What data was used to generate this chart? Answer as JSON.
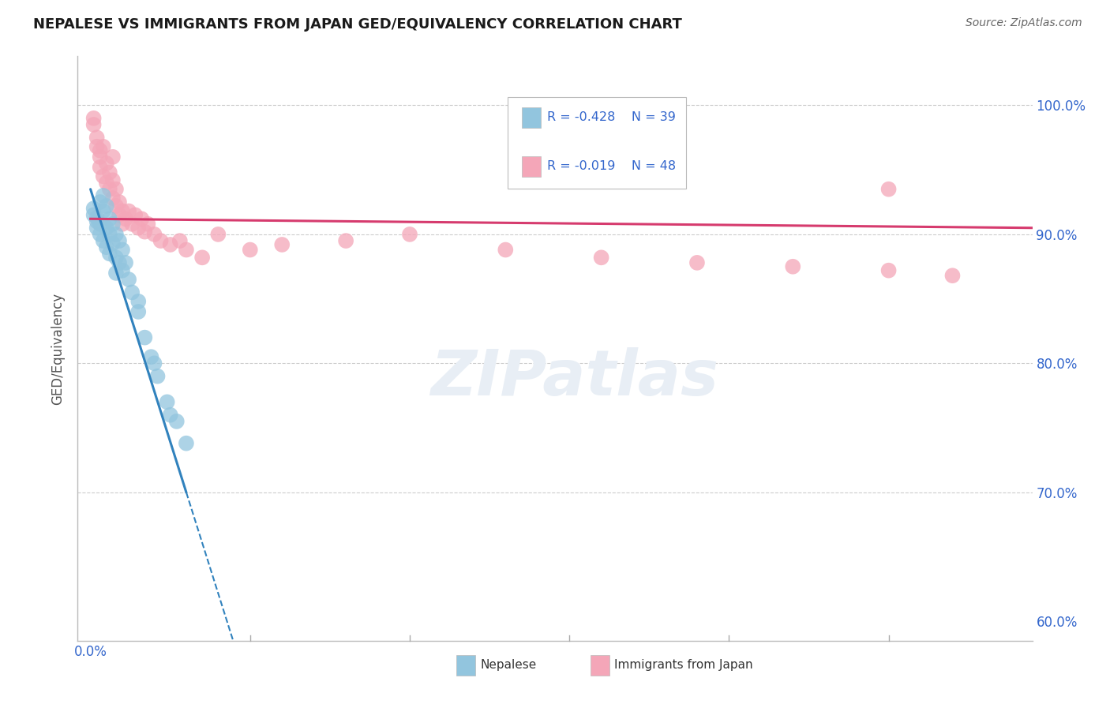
{
  "title": "NEPALESE VS IMMIGRANTS FROM JAPAN GED/EQUIVALENCY CORRELATION CHART",
  "source": "Source: ZipAtlas.com",
  "ylabel": "GED/Equivalency",
  "blue_color": "#92c5de",
  "pink_color": "#f4a6b8",
  "blue_line_color": "#3182bd",
  "pink_line_color": "#d63b6e",
  "label_color": "#3366cc",
  "watermark": "ZIPatlas",
  "nepalese_x": [
    0.001,
    0.001,
    0.002,
    0.002,
    0.002,
    0.003,
    0.003,
    0.003,
    0.004,
    0.004,
    0.004,
    0.005,
    0.005,
    0.005,
    0.006,
    0.006,
    0.006,
    0.007,
    0.007,
    0.008,
    0.008,
    0.009,
    0.009,
    0.01,
    0.01,
    0.011,
    0.012,
    0.013,
    0.015,
    0.017,
    0.019,
    0.021,
    0.024,
    0.027,
    0.03,
    0.015,
    0.008,
    0.02,
    0.025
  ],
  "nepalese_y": [
    0.92,
    0.915,
    0.913,
    0.91,
    0.905,
    0.925,
    0.908,
    0.9,
    0.93,
    0.918,
    0.895,
    0.922,
    0.905,
    0.89,
    0.912,
    0.9,
    0.885,
    0.908,
    0.893,
    0.9,
    0.882,
    0.895,
    0.878,
    0.888,
    0.872,
    0.878,
    0.865,
    0.855,
    0.84,
    0.82,
    0.805,
    0.79,
    0.77,
    0.755,
    0.738,
    0.848,
    0.87,
    0.8,
    0.76
  ],
  "japan_x": [
    0.001,
    0.001,
    0.002,
    0.002,
    0.003,
    0.003,
    0.004,
    0.004,
    0.005,
    0.005,
    0.006,
    0.006,
    0.007,
    0.007,
    0.008,
    0.008,
    0.009,
    0.009,
    0.01,
    0.01,
    0.011,
    0.012,
    0.013,
    0.014,
    0.015,
    0.016,
    0.017,
    0.018,
    0.02,
    0.022,
    0.025,
    0.028,
    0.03,
    0.035,
    0.04,
    0.05,
    0.06,
    0.08,
    0.1,
    0.13,
    0.16,
    0.19,
    0.22,
    0.25,
    0.27,
    0.003,
    0.007,
    0.25
  ],
  "japan_y": [
    0.99,
    0.985,
    0.975,
    0.968,
    0.96,
    0.952,
    0.968,
    0.945,
    0.955,
    0.94,
    0.948,
    0.935,
    0.942,
    0.928,
    0.935,
    0.922,
    0.925,
    0.915,
    0.918,
    0.908,
    0.912,
    0.918,
    0.908,
    0.915,
    0.905,
    0.912,
    0.902,
    0.908,
    0.9,
    0.895,
    0.892,
    0.895,
    0.888,
    0.882,
    0.9,
    0.888,
    0.892,
    0.895,
    0.9,
    0.888,
    0.882,
    0.878,
    0.875,
    0.872,
    0.868,
    0.965,
    0.96,
    0.935
  ],
  "xlim_min": -0.004,
  "xlim_max": 0.295,
  "ylim_min": 0.585,
  "ylim_max": 1.038,
  "yticks": [
    0.6,
    0.7,
    0.8,
    0.9,
    1.0
  ],
  "yticklabels": [
    "60.0%",
    "70.0%",
    "80.0%",
    "90.0%",
    "100.0%"
  ],
  "blue_trendline_x0": 0.0,
  "blue_trendline_y0": 0.935,
  "blue_trendline_x1": 0.03,
  "blue_trendline_y1": 0.7,
  "pink_trendline_x0": 0.0,
  "pink_trendline_y0": 0.912,
  "pink_trendline_x1": 0.295,
  "pink_trendline_y1": 0.905
}
